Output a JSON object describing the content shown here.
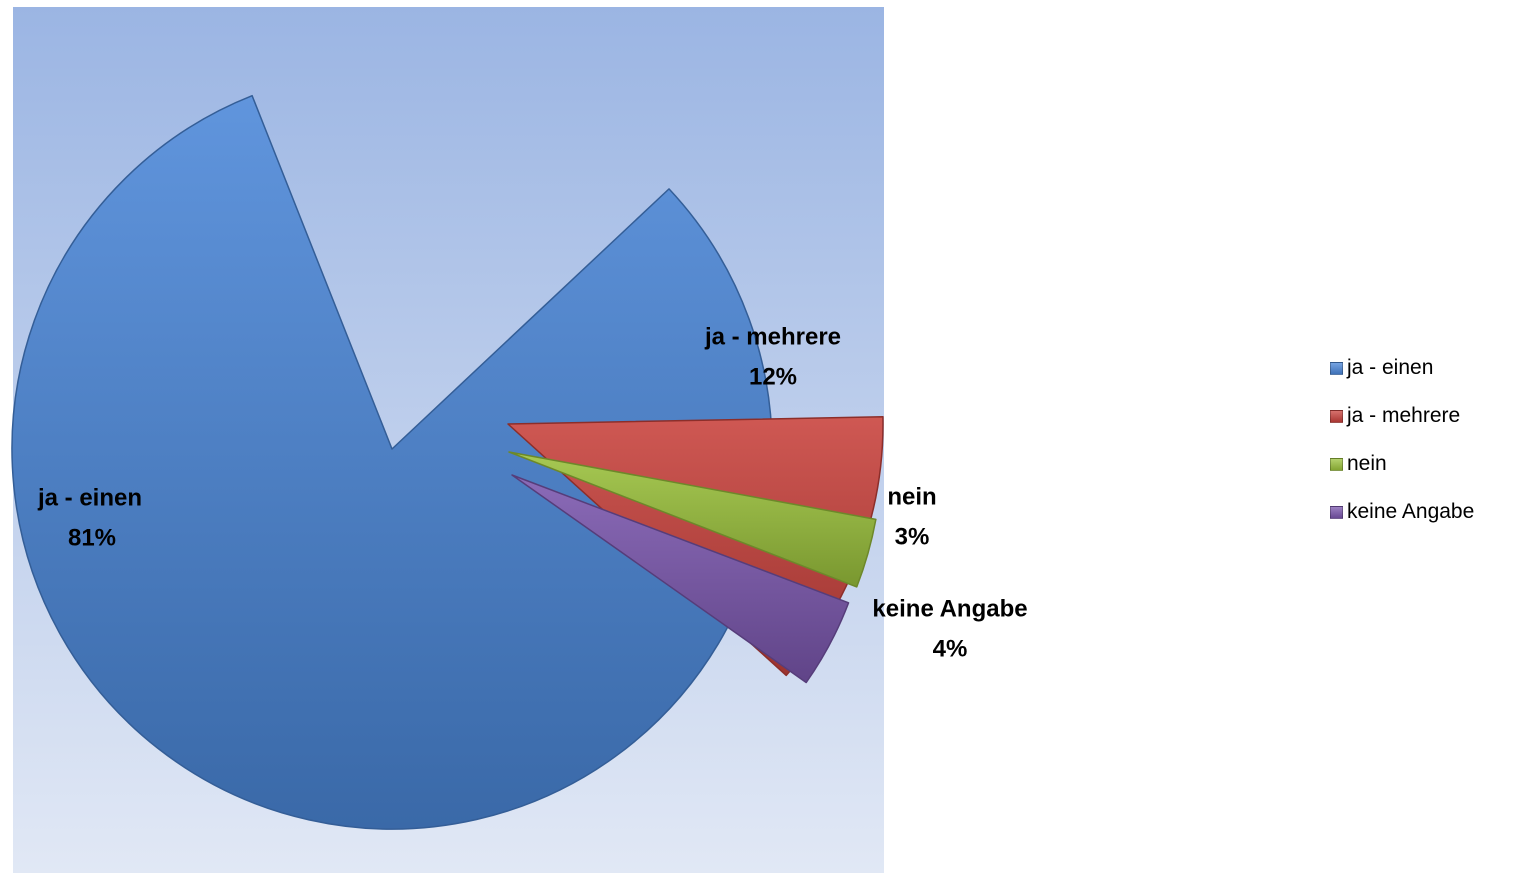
{
  "chart_data": {
    "type": "pie",
    "title": "",
    "slices": [
      {
        "label": "ja - einen",
        "value": 81,
        "display": "81%",
        "color": "#4A86D8"
      },
      {
        "label": "ja - mehrere",
        "value": 12,
        "display": "12%",
        "color": "#C8413C"
      },
      {
        "label": "nein",
        "value": 3,
        "display": "3%",
        "color": "#9BC23C"
      },
      {
        "label": "keine Angabe",
        "value": 4,
        "display": "4%",
        "color": "#7B57AE"
      }
    ],
    "exploded": true,
    "legend_position": "right",
    "plot_background": [
      "#9BB5E3",
      "#E1E8F5"
    ]
  }
}
